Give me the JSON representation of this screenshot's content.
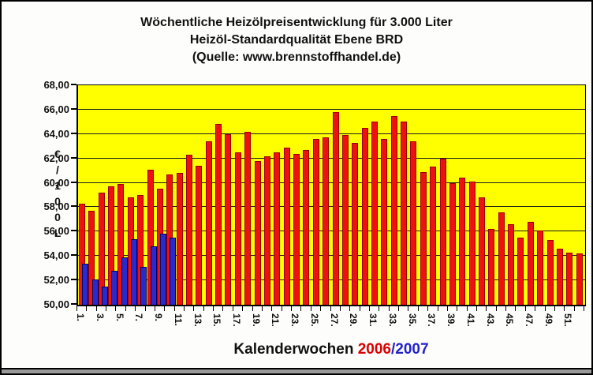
{
  "title": {
    "line1": "Wöchentliche Heizölpreisentwicklung für 3.000 Liter",
    "line2": "Heizöl-Standardqualität Ebene BRD",
    "line3": "(Quelle: www.brennstoffhandel.de)"
  },
  "y_axis": {
    "unit_chars": [
      "€",
      "/",
      "1",
      "0",
      "0",
      "L"
    ],
    "tick_labels": [
      "68,00",
      "66,00",
      "64,00",
      "62,00",
      "60,00",
      "58,00",
      "56,00",
      "54,00",
      "52,00",
      "50,00"
    ]
  },
  "x_axis": {
    "tick_labels": [
      "1.",
      "3.",
      "5.",
      "7.",
      "9.",
      "11.",
      "13.",
      "15.",
      "17.",
      "19.",
      "21.",
      "23.",
      "25.",
      "27.",
      "29.",
      "31.",
      "33.",
      "35.",
      "37.",
      "39.",
      "41.",
      "43.",
      "45.",
      "47.",
      "49.",
      "51."
    ],
    "title": "Kalenderwochen",
    "year_left": "2006",
    "separator": "/",
    "year_right": "2007"
  },
  "chart_data": {
    "type": "bar",
    "title": "Wöchentliche Heizölpreisentwicklung für 3.000 Liter Heizöl-Standardqualität Ebene BRD (Quelle: www.brennstoffhandel.de)",
    "xlabel": "Kalenderwochen 2006/2007",
    "ylabel": "€/100L",
    "ylim": [
      50,
      68
    ],
    "ytick_step": 2,
    "grid": true,
    "legend_position": "none",
    "plot_background": "#ffff00",
    "categories": [
      1,
      2,
      3,
      4,
      5,
      6,
      7,
      8,
      9,
      10,
      11,
      12,
      13,
      14,
      15,
      16,
      17,
      18,
      19,
      20,
      21,
      22,
      23,
      24,
      25,
      26,
      27,
      28,
      29,
      30,
      31,
      32,
      33,
      34,
      35,
      36,
      37,
      38,
      39,
      40,
      41,
      42,
      43,
      44,
      45,
      46,
      47,
      48,
      49,
      50,
      51,
      52
    ],
    "series": [
      {
        "name": "2006",
        "color": "#ee1111",
        "values": [
          58.3,
          57.7,
          59.2,
          59.7,
          59.9,
          58.8,
          59.0,
          61.1,
          59.5,
          60.7,
          60.8,
          62.3,
          61.4,
          63.4,
          64.8,
          64.0,
          62.5,
          64.2,
          61.8,
          62.2,
          62.5,
          62.9,
          62.4,
          62.7,
          63.6,
          63.7,
          65.8,
          63.9,
          63.3,
          64.5,
          65.0,
          63.6,
          65.5,
          65.0,
          63.4,
          60.9,
          61.3,
          62.0,
          60.0,
          60.4,
          60.1,
          58.8,
          56.2,
          57.6,
          56.6,
          55.5,
          56.8,
          56.1,
          55.3,
          54.6,
          54.3,
          54.2
        ]
      },
      {
        "name": "2007",
        "color": "#2a2acc",
        "values": [
          53.4,
          52.1,
          51.5,
          52.8,
          53.9,
          55.4,
          53.1,
          54.8,
          55.8,
          55.5
        ]
      }
    ]
  },
  "colors": {
    "plot_bg": "#ffff00",
    "bar_2006": "#ee1111",
    "bar_2006_border": "#990000",
    "bar_2007": "#2a2acc",
    "bar_2007_border": "#000066",
    "year_2006_text": "#dd0000",
    "year_2007_text": "#2222cc",
    "grid": "#1a1a1a"
  }
}
